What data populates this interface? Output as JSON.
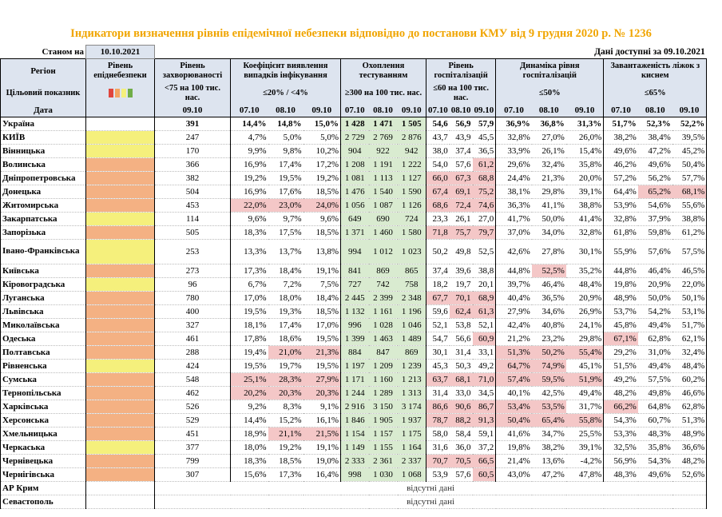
{
  "title": "Індикатори визначення рівнів епідемічної небезпеки відповідно до постанови КМУ від 9 грудня 2020 р. № 1236",
  "status_label": "Станом на",
  "status_date": "10.10.2021",
  "data_avail": "Дані доступні за  09.10.2021",
  "headers": {
    "region": "Регіон",
    "level": "Рівень епіднебезпеки",
    "incidence": "Рівень захворюваності",
    "detection": "Коефіцієнт виявлення випадків інфікування",
    "testing": "Охоплення тестуванням",
    "hosp": "Рівень госпіталізацій",
    "hosp_dyn": "Динаміка рівня госпіталізацій",
    "oxygen": "Завантаженість ліжок з киснем"
  },
  "target": {
    "label": "Цільовий показник",
    "incidence": "<75 на 100 тис. нас.",
    "detection": "≤20% / <4%",
    "testing": "≥300 на 100 тис. нас.",
    "hosp": "≤60 на 100 тис. нас.",
    "hosp_dyn": "≤50%",
    "oxygen": "≤65%"
  },
  "dates_label": "Дата",
  "date_single": "09.10",
  "dates": [
    "07.10",
    "08.10",
    "09.10"
  ],
  "level_colors": {
    "red": "#e0453d",
    "orange": "#f4a460",
    "yellow": "#f5f07c",
    "green": "#70ad47"
  },
  "no_data": "відсутні дані",
  "rows": [
    {
      "name": "Україна",
      "lvl": "",
      "inc": "391",
      "det": [
        "14,4%",
        "14,8%",
        "15,0%"
      ],
      "tst": [
        "1 428",
        "1 471",
        "1 505"
      ],
      "hsp": [
        "54,6",
        "56,9",
        "57,9"
      ],
      "dyn": [
        "36,9%",
        "36,8%",
        "31,3%"
      ],
      "oxy": [
        "51,7%",
        "52,3%",
        "52,2%"
      ],
      "total": true
    },
    {
      "name": "КИЇВ",
      "lvl": "yel",
      "inc": "247",
      "det": [
        "4,7%",
        "5,0%",
        "5,0%"
      ],
      "tst": [
        "2 729",
        "2 769",
        "2 876"
      ],
      "hsp": [
        "43,7",
        "43,9",
        "45,5"
      ],
      "dyn": [
        "32,8%",
        "27,0%",
        "26,0%"
      ],
      "oxy": [
        "38,2%",
        "38,4%",
        "39,5%"
      ]
    },
    {
      "name": "Вінницька",
      "lvl": "yel",
      "inc": "170",
      "det": [
        "9,9%",
        "9,8%",
        "10,2%"
      ],
      "tst": [
        "904",
        "922",
        "942"
      ],
      "hsp": [
        "38,0",
        "37,4",
        "36,5"
      ],
      "dyn": [
        "33,9%",
        "26,1%",
        "15,4%"
      ],
      "oxy": [
        "49,6%",
        "47,2%",
        "45,2%"
      ]
    },
    {
      "name": "Волинська",
      "lvl": "org",
      "inc": "366",
      "det": [
        "16,9%",
        "17,4%",
        "17,2%"
      ],
      "tst": [
        "1 208",
        "1 191",
        "1 222"
      ],
      "hsp": [
        "54,0",
        "57,6",
        "61,2"
      ],
      "dyn": [
        "29,6%",
        "32,4%",
        "35,8%"
      ],
      "oxy": [
        "46,2%",
        "49,6%",
        "50,4%"
      ],
      "r_h": [
        2
      ]
    },
    {
      "name": "Дніпропетровська",
      "lvl": "org",
      "inc": "382",
      "det": [
        "19,2%",
        "19,5%",
        "19,2%"
      ],
      "tst": [
        "1 081",
        "1 113",
        "1 127"
      ],
      "hsp": [
        "66,0",
        "67,3",
        "68,8"
      ],
      "dyn": [
        "24,4%",
        "21,3%",
        "20,0%"
      ],
      "oxy": [
        "57,2%",
        "56,2%",
        "57,7%"
      ],
      "r_h": [
        0,
        1,
        2
      ]
    },
    {
      "name": "Донецька",
      "lvl": "org",
      "inc": "504",
      "det": [
        "16,9%",
        "17,6%",
        "18,5%"
      ],
      "tst": [
        "1 476",
        "1 540",
        "1 590"
      ],
      "hsp": [
        "67,4",
        "69,1",
        "75,2"
      ],
      "dyn": [
        "38,1%",
        "29,8%",
        "39,1%"
      ],
      "oxy": [
        "64,4%",
        "65,2%",
        "68,1%"
      ],
      "r_h": [
        0,
        1,
        2
      ],
      "r_o": [
        1,
        2
      ]
    },
    {
      "name": "Житомирська",
      "lvl": "org",
      "inc": "453",
      "det": [
        "22,0%",
        "23,0%",
        "24,0%"
      ],
      "tst": [
        "1 056",
        "1 087",
        "1 126"
      ],
      "hsp": [
        "68,6",
        "72,4",
        "74,6"
      ],
      "dyn": [
        "36,3%",
        "41,1%",
        "38,8%"
      ],
      "oxy": [
        "53,9%",
        "54,6%",
        "55,6%"
      ],
      "r_d": [
        0,
        1,
        2
      ],
      "r_h": [
        0,
        1,
        2
      ]
    },
    {
      "name": "Закарпатська",
      "lvl": "yel",
      "inc": "114",
      "det": [
        "9,6%",
        "9,7%",
        "9,6%"
      ],
      "tst": [
        "649",
        "690",
        "724"
      ],
      "hsp": [
        "23,3",
        "26,1",
        "27,0"
      ],
      "dyn": [
        "41,7%",
        "50,0%",
        "41,4%"
      ],
      "oxy": [
        "32,8%",
        "37,9%",
        "38,8%"
      ]
    },
    {
      "name": "Запорізька",
      "lvl": "org",
      "inc": "505",
      "det": [
        "18,3%",
        "17,5%",
        "18,5%"
      ],
      "tst": [
        "1 371",
        "1 460",
        "1 580"
      ],
      "hsp": [
        "71,8",
        "75,7",
        "79,7"
      ],
      "dyn": [
        "37,0%",
        "34,0%",
        "32,8%"
      ],
      "oxy": [
        "61,8%",
        "59,8%",
        "61,2%"
      ],
      "r_h": [
        0,
        1,
        2
      ]
    },
    {
      "name": "Івано-Франківська",
      "lvl": "yel",
      "inc": "253",
      "det": [
        "13,3%",
        "13,7%",
        "13,8%"
      ],
      "tst": [
        "994",
        "1 012",
        "1 023"
      ],
      "hsp": [
        "50,2",
        "49,8",
        "52,5"
      ],
      "dyn": [
        "42,6%",
        "27,8%",
        "30,1%"
      ],
      "oxy": [
        "55,9%",
        "57,6%",
        "57,5%"
      ],
      "tall": true
    },
    {
      "name": "Київська",
      "lvl": "org",
      "inc": "273",
      "det": [
        "17,3%",
        "18,4%",
        "19,1%"
      ],
      "tst": [
        "841",
        "869",
        "865"
      ],
      "hsp": [
        "37,4",
        "39,6",
        "38,8"
      ],
      "dyn": [
        "44,8%",
        "52,5%",
        "35,2%"
      ],
      "oxy": [
        "44,8%",
        "46,4%",
        "46,5%"
      ],
      "r_y": [
        1
      ]
    },
    {
      "name": "Кіровоградська",
      "lvl": "yel",
      "inc": "96",
      "det": [
        "6,7%",
        "7,2%",
        "7,5%"
      ],
      "tst": [
        "727",
        "742",
        "758"
      ],
      "hsp": [
        "18,2",
        "19,7",
        "20,1"
      ],
      "dyn": [
        "39,7%",
        "46,4%",
        "48,4%"
      ],
      "oxy": [
        "19,8%",
        "20,9%",
        "22,0%"
      ]
    },
    {
      "name": "Луганська",
      "lvl": "org",
      "inc": "780",
      "det": [
        "17,0%",
        "18,0%",
        "18,4%"
      ],
      "tst": [
        "2 445",
        "2 399",
        "2 348"
      ],
      "hsp": [
        "67,7",
        "70,1",
        "68,9"
      ],
      "dyn": [
        "40,4%",
        "36,5%",
        "20,9%"
      ],
      "oxy": [
        "48,9%",
        "50,0%",
        "50,1%"
      ],
      "r_h": [
        0,
        1,
        2
      ]
    },
    {
      "name": "Львівська",
      "lvl": "org",
      "inc": "400",
      "det": [
        "19,5%",
        "19,3%",
        "18,5%"
      ],
      "tst": [
        "1 132",
        "1 161",
        "1 196"
      ],
      "hsp": [
        "59,6",
        "62,4",
        "61,3"
      ],
      "dyn": [
        "27,9%",
        "34,6%",
        "26,9%"
      ],
      "oxy": [
        "53,7%",
        "54,2%",
        "53,1%"
      ],
      "r_h": [
        1,
        2
      ]
    },
    {
      "name": "Миколаївська",
      "lvl": "org",
      "inc": "327",
      "det": [
        "18,1%",
        "17,4%",
        "17,0%"
      ],
      "tst": [
        "996",
        "1 028",
        "1 046"
      ],
      "hsp": [
        "52,1",
        "53,8",
        "52,1"
      ],
      "dyn": [
        "42,4%",
        "40,8%",
        "24,1%"
      ],
      "oxy": [
        "45,8%",
        "49,4%",
        "51,7%"
      ]
    },
    {
      "name": "Одеська",
      "lvl": "org",
      "inc": "461",
      "det": [
        "17,8%",
        "18,6%",
        "19,5%"
      ],
      "tst": [
        "1 399",
        "1 463",
        "1 489"
      ],
      "hsp": [
        "54,7",
        "56,6",
        "60,9"
      ],
      "dyn": [
        "21,2%",
        "23,2%",
        "29,8%"
      ],
      "oxy": [
        "67,1%",
        "62,8%",
        "62,1%"
      ],
      "r_h": [
        2
      ],
      "r_o": [
        0
      ]
    },
    {
      "name": "Полтавська",
      "lvl": "org",
      "inc": "288",
      "det": [
        "19,4%",
        "21,0%",
        "21,3%"
      ],
      "tst": [
        "884",
        "847",
        "869"
      ],
      "hsp": [
        "30,1",
        "31,4",
        "33,1"
      ],
      "dyn": [
        "51,3%",
        "50,2%",
        "55,4%"
      ],
      "oxy": [
        "29,2%",
        "31,0%",
        "32,4%"
      ],
      "r_d": [
        1,
        2
      ],
      "r_y": [
        0,
        1,
        2
      ]
    },
    {
      "name": "Рівненська",
      "lvl": "yel",
      "inc": "424",
      "det": [
        "19,5%",
        "19,7%",
        "19,5%"
      ],
      "tst": [
        "1 197",
        "1 209",
        "1 239"
      ],
      "hsp": [
        "45,3",
        "50,3",
        "49,2"
      ],
      "dyn": [
        "64,7%",
        "74,9%",
        "45,1%"
      ],
      "oxy": [
        "51,5%",
        "49,4%",
        "48,4%"
      ],
      "r_y": [
        0,
        1
      ]
    },
    {
      "name": "Сумська",
      "lvl": "org",
      "inc": "548",
      "det": [
        "25,1%",
        "28,3%",
        "27,9%"
      ],
      "tst": [
        "1 171",
        "1 160",
        "1 213"
      ],
      "hsp": [
        "63,7",
        "68,1",
        "71,0"
      ],
      "dyn": [
        "57,4%",
        "59,5%",
        "51,9%"
      ],
      "oxy": [
        "49,2%",
        "57,5%",
        "60,2%"
      ],
      "r_d": [
        0,
        1,
        2
      ],
      "r_h": [
        0,
        1,
        2
      ],
      "r_y": [
        0,
        1,
        2
      ]
    },
    {
      "name": "Тернопільська",
      "lvl": "org",
      "inc": "462",
      "det": [
        "20,2%",
        "20,3%",
        "20,3%"
      ],
      "tst": [
        "1 244",
        "1 289",
        "1 313"
      ],
      "hsp": [
        "31,4",
        "33,0",
        "34,5"
      ],
      "dyn": [
        "40,1%",
        "42,5%",
        "49,4%"
      ],
      "oxy": [
        "48,2%",
        "49,8%",
        "46,6%"
      ],
      "r_d": [
        0,
        1,
        2
      ]
    },
    {
      "name": "Харківська",
      "lvl": "org",
      "inc": "526",
      "det": [
        "9,2%",
        "8,3%",
        "9,1%"
      ],
      "tst": [
        "2 916",
        "3 150",
        "3 174"
      ],
      "hsp": [
        "86,6",
        "90,6",
        "86,7"
      ],
      "dyn": [
        "53,4%",
        "53,5%",
        "31,7%"
      ],
      "oxy": [
        "66,2%",
        "64,8%",
        "62,8%"
      ],
      "r_h": [
        0,
        1,
        2
      ],
      "r_y": [
        0,
        1
      ],
      "r_o": [
        0
      ]
    },
    {
      "name": "Херсонська",
      "lvl": "org",
      "inc": "529",
      "det": [
        "14,4%",
        "15,2%",
        "16,1%"
      ],
      "tst": [
        "1 846",
        "1 905",
        "1 937"
      ],
      "hsp": [
        "78,7",
        "88,2",
        "91,3"
      ],
      "dyn": [
        "50,4%",
        "65,4%",
        "55,8%"
      ],
      "oxy": [
        "54,3%",
        "60,7%",
        "51,3%"
      ],
      "r_h": [
        0,
        1,
        2
      ],
      "r_y": [
        0,
        1,
        2
      ]
    },
    {
      "name": "Хмельницька",
      "lvl": "org",
      "inc": "451",
      "det": [
        "18,9%",
        "21,1%",
        "21,5%"
      ],
      "tst": [
        "1 154",
        "1 157",
        "1 175"
      ],
      "hsp": [
        "58,0",
        "58,4",
        "59,1"
      ],
      "dyn": [
        "41,6%",
        "34,7%",
        "25,5%"
      ],
      "oxy": [
        "53,3%",
        "48,3%",
        "48,9%"
      ],
      "r_d": [
        1,
        2
      ]
    },
    {
      "name": "Черкаська",
      "lvl": "yel",
      "inc": "377",
      "det": [
        "18,0%",
        "19,2%",
        "19,1%"
      ],
      "tst": [
        "1 149",
        "1 155",
        "1 164"
      ],
      "hsp": [
        "31,6",
        "36,0",
        "37,2"
      ],
      "dyn": [
        "19,8%",
        "38,2%",
        "39,1%"
      ],
      "oxy": [
        "32,5%",
        "35,8%",
        "36,6%"
      ]
    },
    {
      "name": "Чернівецька",
      "lvl": "org",
      "inc": "799",
      "det": [
        "18,3%",
        "18,5%",
        "19,0%"
      ],
      "tst": [
        "2 333",
        "2 361",
        "2 337"
      ],
      "hsp": [
        "70,7",
        "70,5",
        "66,5"
      ],
      "dyn": [
        "21,4%",
        "13,6%",
        "-4,2%"
      ],
      "oxy": [
        "56,9%",
        "54,3%",
        "48,2%"
      ],
      "r_h": [
        0,
        1,
        2
      ]
    },
    {
      "name": "Чернігівська",
      "lvl": "org",
      "inc": "307",
      "det": [
        "15,6%",
        "17,3%",
        "16,4%"
      ],
      "tst": [
        "998",
        "1 030",
        "1 068"
      ],
      "hsp": [
        "53,9",
        "57,6",
        "60,5"
      ],
      "dyn": [
        "43,0%",
        "47,2%",
        "47,8%"
      ],
      "oxy": [
        "48,3%",
        "49,6%",
        "52,6%"
      ],
      "r_h": [
        2
      ]
    }
  ],
  "no_data_rows": [
    "АР Крим",
    "Севастополь"
  ]
}
